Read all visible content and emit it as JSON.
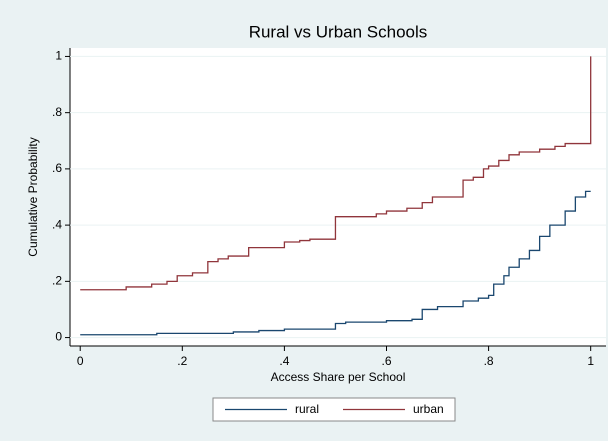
{
  "chart_data": {
    "type": "line",
    "title": "Rural vs Urban Schools",
    "x_label": "Access Share per School",
    "y_label": "Cumulative Probability",
    "xlim": [
      -0.02,
      1.03
    ],
    "ylim": [
      -0.03,
      1.03
    ],
    "xticks": [
      0,
      {
        "value": 0.2,
        "label": ".2"
      },
      {
        "value": 0.4,
        "label": ".4"
      },
      {
        "value": 0.6,
        "label": ".6"
      },
      {
        "value": 0.8,
        "label": ".8"
      },
      1
    ],
    "yticks": [
      0,
      {
        "value": 0.2,
        "label": ".2"
      },
      {
        "value": 0.4,
        "label": ".4"
      },
      {
        "value": 0.6,
        "label": ".6"
      },
      {
        "value": 0.8,
        "label": ".8"
      },
      1
    ],
    "grid": true,
    "legend": "bottom",
    "series": [
      {
        "name": "rural",
        "color": "#1a476f",
        "x": [
          0,
          0.15,
          0.15,
          0.3,
          0.3,
          0.35,
          0.35,
          0.4,
          0.4,
          0.5,
          0.5,
          0.52,
          0.52,
          0.6,
          0.6,
          0.65,
          0.65,
          0.67,
          0.67,
          0.7,
          0.7,
          0.75,
          0.75,
          0.78,
          0.78,
          0.8,
          0.8,
          0.81,
          0.81,
          0.83,
          0.83,
          0.84,
          0.84,
          0.86,
          0.86,
          0.88,
          0.88,
          0.9,
          0.9,
          0.92,
          0.92,
          0.95,
          0.95,
          0.97,
          0.97,
          0.99,
          0.99,
          1
        ],
        "values": [
          0.01,
          0.01,
          0.015,
          0.015,
          0.02,
          0.02,
          0.025,
          0.025,
          0.03,
          0.03,
          0.05,
          0.05,
          0.055,
          0.055,
          0.06,
          0.06,
          0.065,
          0.065,
          0.1,
          0.1,
          0.11,
          0.11,
          0.13,
          0.13,
          0.14,
          0.14,
          0.15,
          0.15,
          0.19,
          0.19,
          0.22,
          0.22,
          0.25,
          0.25,
          0.28,
          0.28,
          0.31,
          0.31,
          0.36,
          0.36,
          0.4,
          0.4,
          0.45,
          0.45,
          0.5,
          0.5,
          0.52,
          0.52
        ]
      },
      {
        "name": "urban",
        "color": "#90353b",
        "x": [
          0,
          0.09,
          0.09,
          0.14,
          0.14,
          0.17,
          0.17,
          0.19,
          0.19,
          0.22,
          0.22,
          0.25,
          0.25,
          0.27,
          0.27,
          0.29,
          0.29,
          0.33,
          0.33,
          0.4,
          0.4,
          0.43,
          0.43,
          0.45,
          0.45,
          0.5,
          0.5,
          0.58,
          0.58,
          0.6,
          0.6,
          0.64,
          0.64,
          0.67,
          0.67,
          0.69,
          0.69,
          0.75,
          0.75,
          0.77,
          0.77,
          0.79,
          0.79,
          0.8,
          0.8,
          0.82,
          0.82,
          0.84,
          0.84,
          0.86,
          0.86,
          0.9,
          0.9,
          0.93,
          0.93,
          0.95,
          0.95,
          1,
          1
        ],
        "values": [
          0.17,
          0.17,
          0.18,
          0.18,
          0.19,
          0.19,
          0.2,
          0.2,
          0.22,
          0.22,
          0.23,
          0.23,
          0.27,
          0.27,
          0.28,
          0.28,
          0.29,
          0.29,
          0.32,
          0.32,
          0.34,
          0.34,
          0.345,
          0.345,
          0.35,
          0.35,
          0.43,
          0.43,
          0.44,
          0.44,
          0.45,
          0.45,
          0.46,
          0.46,
          0.48,
          0.48,
          0.5,
          0.5,
          0.56,
          0.56,
          0.57,
          0.57,
          0.6,
          0.6,
          0.61,
          0.61,
          0.63,
          0.63,
          0.65,
          0.65,
          0.66,
          0.66,
          0.67,
          0.67,
          0.68,
          0.68,
          0.69,
          0.69,
          1
        ]
      }
    ]
  }
}
